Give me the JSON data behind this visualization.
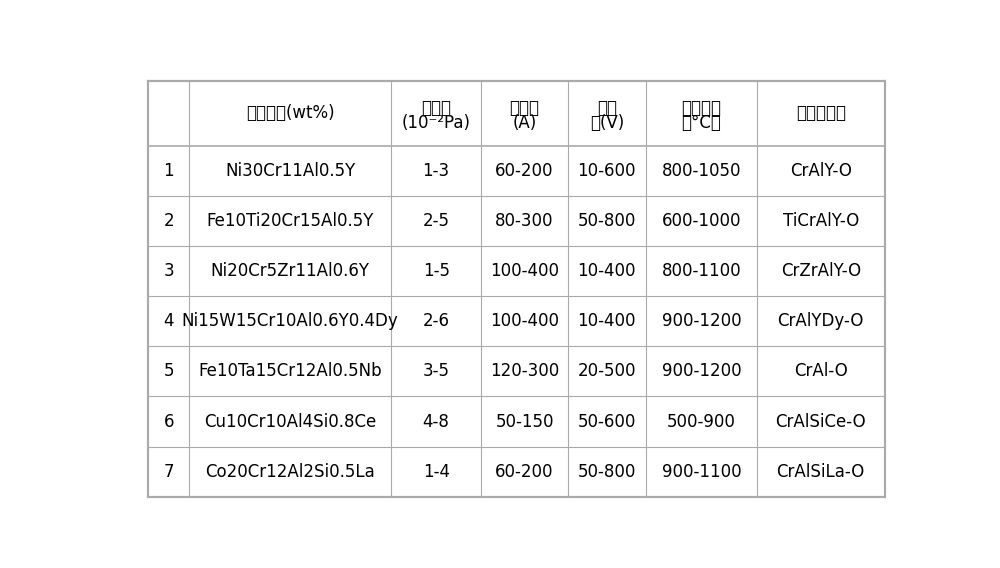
{
  "rows": [
    [
      "1",
      "Ni30Cr11Al0.5Y",
      "1-3",
      "60-200",
      "10-600",
      "800-1050",
      "CrAlY-O"
    ],
    [
      "2",
      "Fe10Ti20Cr15Al0.5Y",
      "2-5",
      "80-300",
      "50-800",
      "600-1000",
      "TiCrAlY-O"
    ],
    [
      "3",
      "Ni20Cr5Zr11Al0.6Y",
      "1-5",
      "100-400",
      "10-400",
      "800-1100",
      "CrZrAlY-O"
    ],
    [
      "4",
      "Ni15W15Cr10Al0.6Y0.4Dy",
      "2-6",
      "100-400",
      "10-400",
      "900-1200",
      "CrAlYDy-O"
    ],
    [
      "5",
      "Fe10Ta15Cr12Al0.5Nb",
      "3-5",
      "120-300",
      "20-500",
      "900-1200",
      "CrAl-O"
    ],
    [
      "6",
      "Cu10Cr10Al4Si0.8Ce",
      "4-8",
      "50-150",
      "50-600",
      "500-900",
      "CrAlSiCe-O"
    ],
    [
      "7",
      "Co20Cr12Al2Si0.5La",
      "1-4",
      "60-200",
      "50-800",
      "900-1100",
      "CrAlSiLa-O"
    ]
  ],
  "header_line1": [
    "",
    "靶材成分(wt%)",
    "氧分压",
    "靶电流",
    "负偏",
    "退火温度",
    "氧化物组成"
  ],
  "header_line2": [
    "",
    "",
    "(10⁻²Pa)",
    "(A)",
    "压(V)",
    "（°C）",
    ""
  ],
  "bg_color": "#ffffff",
  "line_color": "#aaaaaa",
  "text_color": "#000000",
  "fig_width": 10.0,
  "fig_height": 5.68,
  "font_size": 12,
  "header_font_size": 12
}
